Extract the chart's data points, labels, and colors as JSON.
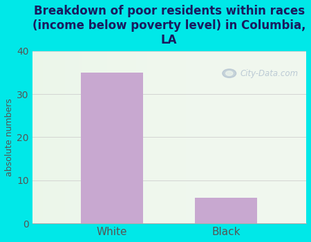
{
  "categories": [
    "White",
    "Black"
  ],
  "values": [
    35,
    6
  ],
  "bar_color": "#c8a8d0",
  "background_color": "#00e8e8",
  "plot_bg_color": "#eaf5e8",
  "title": "Breakdown of poor residents within races\n(income below poverty level) in Columbia,\nLA",
  "ylabel": "absolute numbers",
  "ylim": [
    0,
    40
  ],
  "yticks": [
    0,
    10,
    20,
    30,
    40
  ],
  "title_fontsize": 12,
  "title_color": "#1a1a5e",
  "axis_label_color": "#555555",
  "tick_color": "#555555",
  "bar_width": 0.55,
  "grid_color": "#cccccc",
  "watermark": "City-Data.com"
}
